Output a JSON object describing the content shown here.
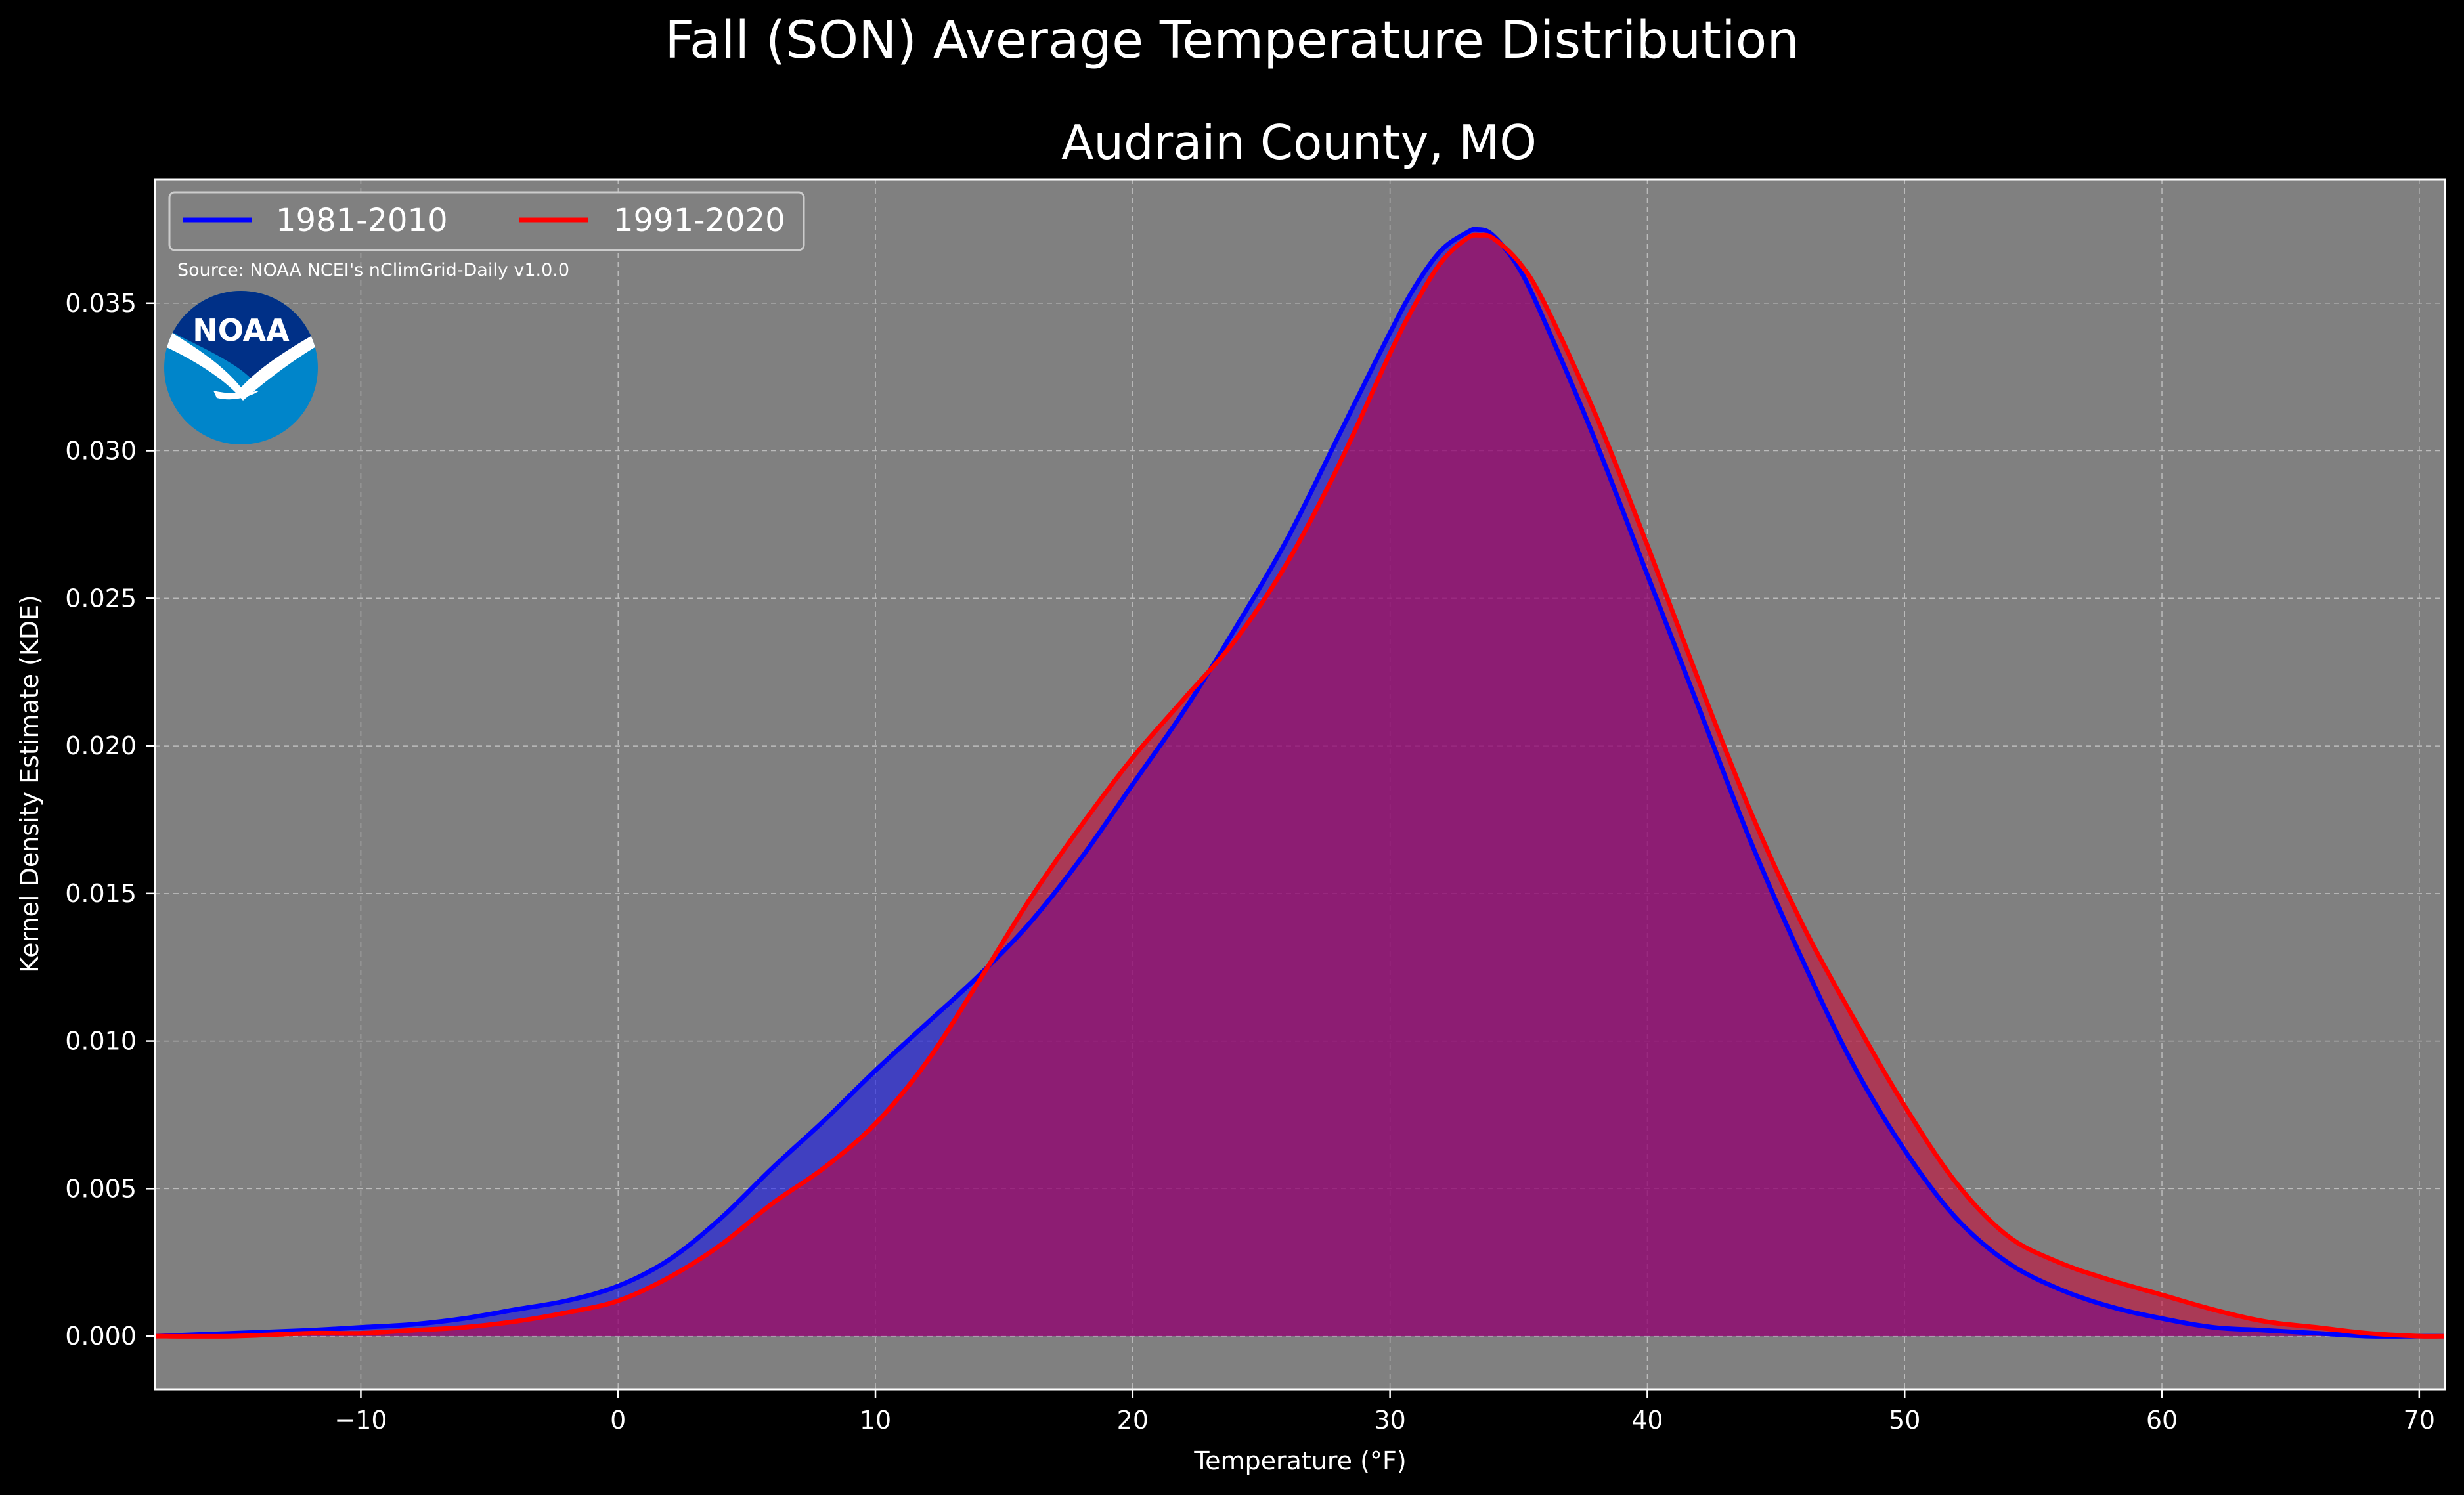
{
  "chart_data": {
    "type": "area",
    "title": "Fall (SON) Average Temperature Distribution",
    "subtitle": "Audrain County, MO",
    "xlabel": "Temperature (°F)",
    "ylabel": "Kernel Density Estimate (KDE)",
    "xlim": [
      -18,
      71
    ],
    "ylim": [
      -0.0018,
      0.0392
    ],
    "x_ticks": [
      -10,
      0,
      10,
      20,
      30,
      40,
      50,
      60,
      70
    ],
    "y_ticks": [
      0.0,
      0.005,
      0.01,
      0.015,
      0.02,
      0.025,
      0.03,
      0.035
    ],
    "x_tick_labels": [
      "−10",
      "0",
      "10",
      "20",
      "30",
      "40",
      "50",
      "60",
      "70"
    ],
    "y_tick_labels": [
      "0.000",
      "0.005",
      "0.010",
      "0.015",
      "0.020",
      "0.025",
      "0.030",
      "0.035"
    ],
    "grid": true,
    "legend_position": "top-left",
    "source": "Source: NOAA NCEI's nClimGrid-Daily v1.0.0",
    "logo_text": "NOAA",
    "background_color": "#808080",
    "series": [
      {
        "name": "1981-2010",
        "color": "#0000ff",
        "fill_color": "#0000ff",
        "x": [
          -18,
          -15,
          -12,
          -10,
          -8,
          -6,
          -4,
          -2,
          0,
          2,
          4,
          6,
          8,
          10,
          12,
          14,
          16,
          18,
          20,
          22,
          24,
          26,
          28,
          30,
          31,
          32,
          33,
          33.4,
          34,
          35,
          36,
          38,
          40,
          42,
          44,
          46,
          48,
          50,
          52,
          54,
          56,
          58,
          60,
          62,
          64,
          66,
          68,
          70,
          71
        ],
        "y": [
          0.0,
          0.0001,
          0.0002,
          0.0003,
          0.0004,
          0.0006,
          0.0009,
          0.0012,
          0.0017,
          0.0026,
          0.004,
          0.0057,
          0.0073,
          0.009,
          0.0106,
          0.0122,
          0.014,
          0.0162,
          0.0187,
          0.0212,
          0.024,
          0.027,
          0.0305,
          0.034,
          0.0356,
          0.0368,
          0.0374,
          0.0375,
          0.0373,
          0.0362,
          0.0344,
          0.0303,
          0.0258,
          0.0213,
          0.0168,
          0.0128,
          0.0092,
          0.0063,
          0.004,
          0.0025,
          0.0016,
          0.001,
          0.0006,
          0.0003,
          0.0002,
          0.0001,
          0.0,
          0.0,
          0.0
        ]
      },
      {
        "name": "1991-2020",
        "color": "#ff0000",
        "fill_color": "#cc0033",
        "x": [
          -18,
          -15,
          -12,
          -10,
          -8,
          -6,
          -4,
          -2,
          0,
          2,
          4,
          6,
          8,
          10,
          12,
          14,
          16,
          18,
          20,
          22,
          24,
          26,
          28,
          30,
          31,
          32,
          33,
          33.5,
          34,
          35,
          36,
          38,
          40,
          42,
          44,
          46,
          48,
          50,
          52,
          54,
          56,
          58,
          60,
          62,
          64,
          66,
          68,
          70,
          71
        ],
        "y": [
          0.0,
          0.0,
          0.0001,
          0.0001,
          0.0002,
          0.0003,
          0.0005,
          0.0008,
          0.0012,
          0.002,
          0.0031,
          0.0045,
          0.0057,
          0.0072,
          0.0093,
          0.012,
          0.0148,
          0.0173,
          0.0196,
          0.0216,
          0.0236,
          0.0262,
          0.0295,
          0.0333,
          0.035,
          0.0364,
          0.0372,
          0.0373,
          0.0372,
          0.0364,
          0.035,
          0.0312,
          0.0268,
          0.0222,
          0.0178,
          0.014,
          0.0108,
          0.0078,
          0.0052,
          0.0034,
          0.0025,
          0.0019,
          0.0014,
          0.0009,
          0.0005,
          0.0003,
          0.0001,
          0.0,
          0.0
        ]
      }
    ]
  }
}
